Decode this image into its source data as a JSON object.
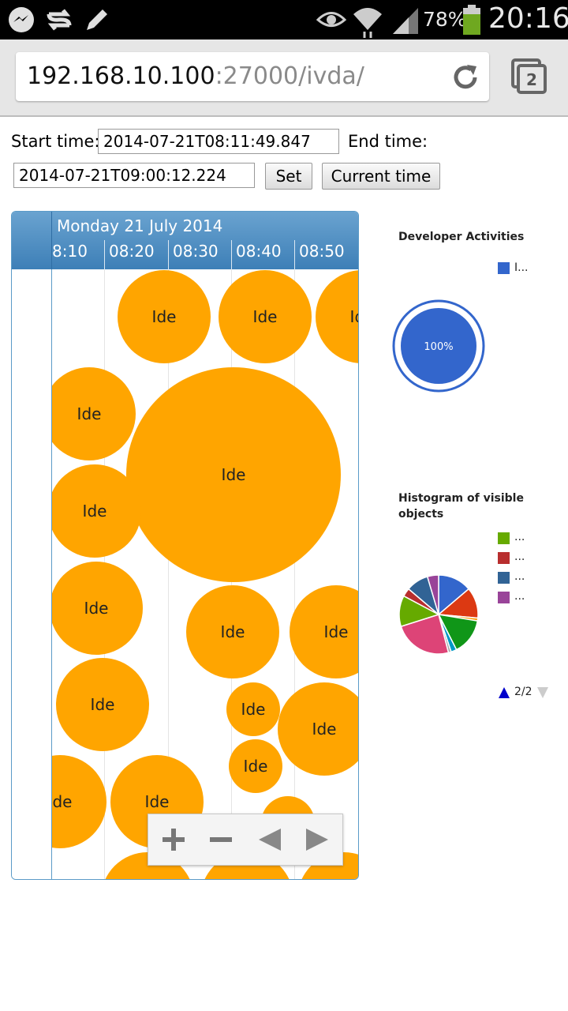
{
  "status_bar": {
    "battery_percent": "78%",
    "time": "20:16",
    "icons": [
      "messenger-icon",
      "sync-icon",
      "pencil-icon",
      "eye-icon",
      "wifi-icon",
      "signal-icon",
      "battery-icon"
    ]
  },
  "browser": {
    "url_host": "192.168.10.100",
    "url_rest": ":27000/ivda/",
    "tab_count": "2"
  },
  "form": {
    "start_label": "Start time:",
    "start_value": "2014-07-21T08:11:49.847",
    "end_label": "End time:",
    "end_value": "2014-07-21T09:00:12.224",
    "set_label": "Set",
    "current_time_label": "Current time"
  },
  "timeline": {
    "date_label": "Monday 21 July 2014",
    "ticks": [
      "8:10",
      "08:20",
      "08:30",
      "08:40",
      "08:50"
    ],
    "bubble_label": "Ide",
    "bubble_color": "#ffa500",
    "header_color": "#4a89c0"
  },
  "developer_activities": {
    "title": "Developer Activities",
    "legend": [
      {
        "label": "I...",
        "color": "#3366cc"
      }
    ],
    "chart_data": {
      "type": "pie",
      "title": "Developer Activities",
      "categories": [
        "I..."
      ],
      "values": [
        100
      ],
      "slice_labels": [
        "100%"
      ],
      "colors": [
        "#3366cc"
      ]
    }
  },
  "histogram": {
    "title_line1": "Histogram of visible",
    "title_line2": "objects",
    "legend": [
      {
        "label": "...",
        "color": "#66aa00"
      },
      {
        "label": "...",
        "color": "#b82e2e"
      },
      {
        "label": "...",
        "color": "#316395"
      },
      {
        "label": "...",
        "color": "#994499"
      }
    ],
    "pager_label": "2/2",
    "chart_data": {
      "type": "pie",
      "title": "Histogram of visible objects",
      "values": [
        12,
        11,
        1,
        13,
        2,
        1,
        21,
        11,
        3,
        8,
        4
      ],
      "colors": [
        "#3366cc",
        "#dc3912",
        "#ff9900",
        "#109618",
        "#0099c6",
        "#aaaaaa",
        "#dd4477",
        "#66aa00",
        "#b82e2e",
        "#316395",
        "#994499"
      ]
    }
  }
}
